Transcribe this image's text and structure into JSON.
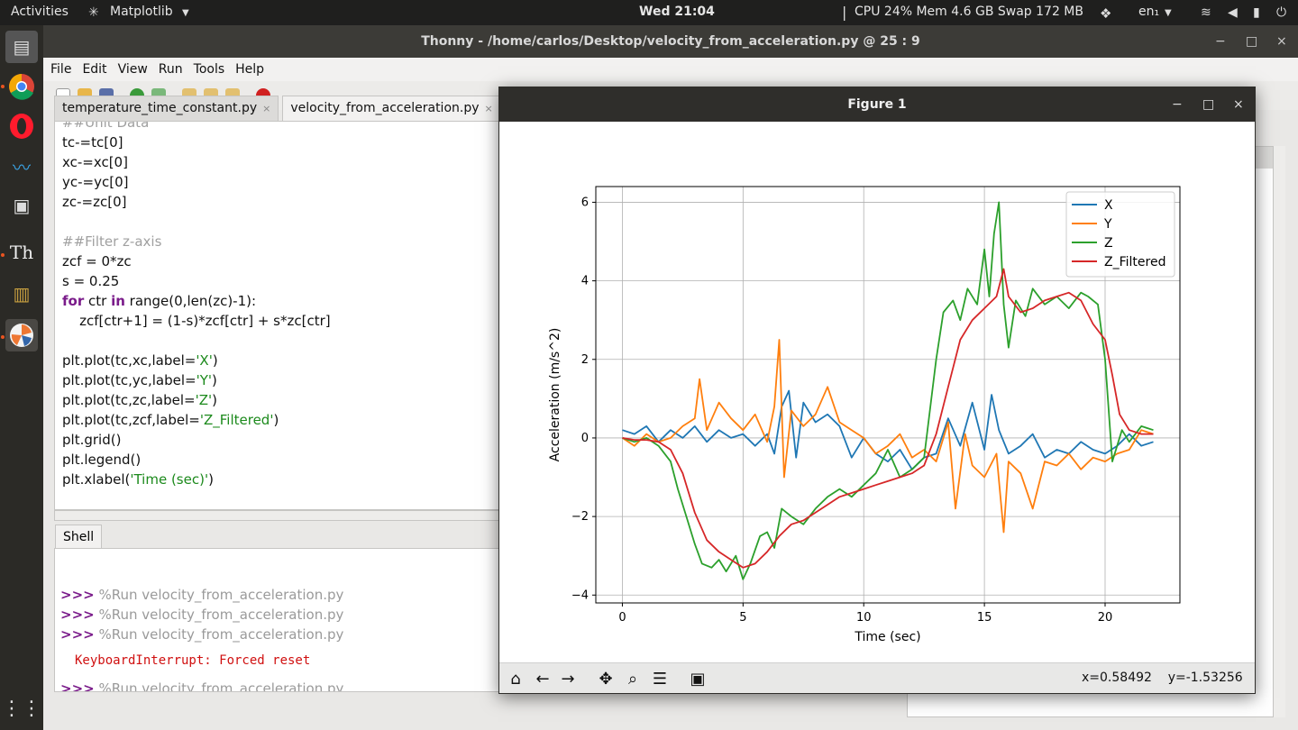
{
  "topbar": {
    "activities": "Activities",
    "app_name": "Matplotlib",
    "clock": "Wed 21:04",
    "sysmon": "CPU 24% Mem 4.6 GB Swap 172 MB",
    "lang": "en₁"
  },
  "dock": {
    "items": [
      "files-icon",
      "chrome-icon",
      "opera-icon",
      "dolphin-icon",
      "camera-icon",
      "thonny-icon",
      "archive-icon",
      "matplotlib-icon",
      "apps-grid-icon"
    ]
  },
  "thonny": {
    "title": "Thonny  -  /home/carlos/Desktop/velocity_from_acceleration.py  @  25 : 9",
    "menu": [
      "File",
      "Edit",
      "View",
      "Run",
      "Tools",
      "Help"
    ],
    "tabs": [
      {
        "label": "temperature_time_constant.py",
        "close": "×"
      },
      {
        "label": "velocity_from_acceleration.py",
        "close": "×"
      }
    ],
    "code": {
      "l0": "##Unit Data",
      "l1": "tc-=tc[0]",
      "l2": "xc-=xc[0]",
      "l3": "yc-=yc[0]",
      "l4": "zc-=zc[0]",
      "l6": "##Filter z-axis",
      "l7": "zcf = 0*zc",
      "l8": "s = 0.25",
      "l9_kw1": "for",
      "l9_a": " ctr ",
      "l9_kw2": "in",
      "l9_b": " range(0,len(zc)-1):",
      "l10": "    zcf[ctr+1] = (1-s)*zcf[ctr] + s*zc[ctr]",
      "l12_a": "plt.plot(tc,xc,label=",
      "l12_s": "'X'",
      "l12_b": ")",
      "l13_a": "plt.plot(tc,yc,label=",
      "l13_s": "'Y'",
      "l13_b": ")",
      "l14_a": "plt.plot(tc,zc,label=",
      "l14_s": "'Z'",
      "l14_b": ")",
      "l15_a": "plt.plot(tc,zcf,label=",
      "l15_s": "'Z_Filtered'",
      "l15_b": ")",
      "l16": "plt.grid()",
      "l17": "plt.legend()",
      "l18_a": "plt.xlabel(",
      "l18_s": "'Time (sec)'",
      "l18_b": ")"
    },
    "shell": {
      "tab": "Shell",
      "prompt": ">>>",
      "run1": " %Run velocity_from_acceleration.py",
      "run2": " %Run velocity_from_acceleration.py",
      "run3": " %Run velocity_from_acceleration.py",
      "error": "KeyboardInterrupt: Forced reset",
      "run4": " %Run velocity_from_acceleration.py"
    }
  },
  "figure": {
    "title": "Figure 1",
    "coords": "x=0.58492    y=-1.53256"
  },
  "chart_data": {
    "type": "line",
    "xlabel": "Time (sec)",
    "ylabel": "Acceleration (m/s^2)",
    "xlim": [
      -1.1,
      23.1
    ],
    "ylim": [
      -4.2,
      6.4
    ],
    "xticks": [
      0,
      5,
      10,
      15,
      20
    ],
    "yticks": [
      -4,
      -2,
      0,
      2,
      4,
      6
    ],
    "grid": true,
    "legend_position": "top-right",
    "series": [
      {
        "name": "X",
        "color": "#1f77b4",
        "x": [
          0,
          0.5,
          1,
          1.5,
          2,
          2.5,
          3,
          3.5,
          4,
          4.5,
          5,
          5.5,
          6,
          6.3,
          6.6,
          6.9,
          7.2,
          7.5,
          8,
          8.5,
          9,
          9.5,
          10,
          10.5,
          11,
          11.5,
          12,
          12.5,
          13,
          13.5,
          14,
          14.5,
          15,
          15.3,
          15.6,
          16,
          16.5,
          17,
          17.5,
          18,
          18.5,
          19,
          19.5,
          20,
          20.5,
          21,
          21.5,
          22
        ],
        "y": [
          0.2,
          0.1,
          0.3,
          -0.1,
          0.2,
          0.0,
          0.3,
          -0.1,
          0.2,
          0.0,
          0.1,
          -0.2,
          0.1,
          -0.4,
          0.8,
          1.2,
          -0.5,
          0.9,
          0.4,
          0.6,
          0.3,
          -0.5,
          0.0,
          -0.4,
          -0.6,
          -0.3,
          -0.8,
          -0.5,
          -0.4,
          0.5,
          -0.2,
          0.9,
          -0.3,
          1.1,
          0.2,
          -0.4,
          -0.2,
          0.1,
          -0.5,
          -0.3,
          -0.4,
          -0.1,
          -0.3,
          -0.4,
          -0.2,
          0.1,
          -0.2,
          -0.1
        ]
      },
      {
        "name": "Y",
        "color": "#ff7f0e",
        "x": [
          0,
          0.5,
          1,
          1.5,
          2,
          2.5,
          3,
          3.2,
          3.5,
          4,
          4.5,
          5,
          5.5,
          6,
          6.3,
          6.5,
          6.7,
          7,
          7.5,
          8,
          8.5,
          9,
          9.5,
          10,
          10.5,
          11,
          11.5,
          12,
          12.5,
          13,
          13.5,
          13.8,
          14.2,
          14.5,
          15,
          15.5,
          15.8,
          16,
          16.5,
          17,
          17.5,
          18,
          18.5,
          19,
          19.5,
          20,
          20.5,
          21,
          21.5,
          22
        ],
        "y": [
          0.0,
          -0.2,
          0.1,
          -0.1,
          0.0,
          0.3,
          0.5,
          1.5,
          0.2,
          0.9,
          0.5,
          0.2,
          0.6,
          -0.1,
          0.8,
          2.5,
          -1.0,
          0.7,
          0.3,
          0.6,
          1.3,
          0.4,
          0.2,
          0.0,
          -0.4,
          -0.2,
          0.1,
          -0.5,
          -0.3,
          -0.6,
          0.4,
          -1.8,
          0.1,
          -0.7,
          -1.0,
          -0.4,
          -2.4,
          -0.6,
          -0.9,
          -1.8,
          -0.6,
          -0.7,
          -0.4,
          -0.8,
          -0.5,
          -0.6,
          -0.4,
          -0.3,
          0.2,
          0.1
        ]
      },
      {
        "name": "Z",
        "color": "#2ca02c",
        "x": [
          0,
          0.5,
          1,
          1.5,
          2,
          2.3,
          2.7,
          3,
          3.3,
          3.7,
          4,
          4.3,
          4.7,
          5,
          5.3,
          5.7,
          6,
          6.3,
          6.6,
          7,
          7.5,
          8,
          8.5,
          9,
          9.5,
          10,
          10.5,
          11,
          11.5,
          12,
          12.5,
          13,
          13.3,
          13.7,
          14,
          14.3,
          14.7,
          15,
          15.2,
          15.4,
          15.6,
          15.8,
          16,
          16.3,
          16.7,
          17,
          17.5,
          18,
          18.5,
          19,
          19.3,
          19.7,
          20,
          20.3,
          20.7,
          21,
          21.5,
          22
        ],
        "y": [
          0.0,
          -0.1,
          0.0,
          -0.2,
          -0.6,
          -1.3,
          -2.1,
          -2.7,
          -3.2,
          -3.3,
          -3.1,
          -3.4,
          -3.0,
          -3.6,
          -3.2,
          -2.5,
          -2.4,
          -2.8,
          -1.8,
          -2.0,
          -2.2,
          -1.8,
          -1.5,
          -1.3,
          -1.5,
          -1.2,
          -0.9,
          -0.3,
          -1.0,
          -0.8,
          -0.5,
          2.0,
          3.2,
          3.5,
          3.0,
          3.8,
          3.4,
          4.8,
          3.6,
          5.2,
          6.0,
          3.4,
          2.3,
          3.5,
          3.1,
          3.8,
          3.4,
          3.6,
          3.3,
          3.7,
          3.6,
          3.4,
          2.0,
          -0.6,
          0.2,
          -0.1,
          0.3,
          0.2
        ]
      },
      {
        "name": "Z_Filtered",
        "color": "#d62728",
        "x": [
          0,
          0.5,
          1,
          1.5,
          2,
          2.5,
          3,
          3.5,
          4,
          4.5,
          5,
          5.5,
          6,
          6.5,
          7,
          7.5,
          8,
          8.5,
          9,
          9.5,
          10,
          10.5,
          11,
          11.5,
          12,
          12.5,
          13,
          13.5,
          14,
          14.5,
          15,
          15.5,
          15.8,
          16,
          16.5,
          17,
          17.5,
          18,
          18.5,
          19,
          19.5,
          20,
          20.3,
          20.6,
          21,
          21.5,
          22
        ],
        "y": [
          0.0,
          -0.05,
          -0.05,
          -0.1,
          -0.3,
          -0.9,
          -1.9,
          -2.6,
          -2.9,
          -3.1,
          -3.3,
          -3.2,
          -2.9,
          -2.5,
          -2.2,
          -2.1,
          -1.9,
          -1.7,
          -1.5,
          -1.4,
          -1.3,
          -1.2,
          -1.1,
          -1.0,
          -0.9,
          -0.7,
          0.1,
          1.3,
          2.5,
          3.0,
          3.3,
          3.6,
          4.3,
          3.6,
          3.2,
          3.3,
          3.5,
          3.6,
          3.7,
          3.5,
          2.9,
          2.5,
          1.6,
          0.6,
          0.2,
          0.1,
          0.1
        ]
      }
    ]
  }
}
